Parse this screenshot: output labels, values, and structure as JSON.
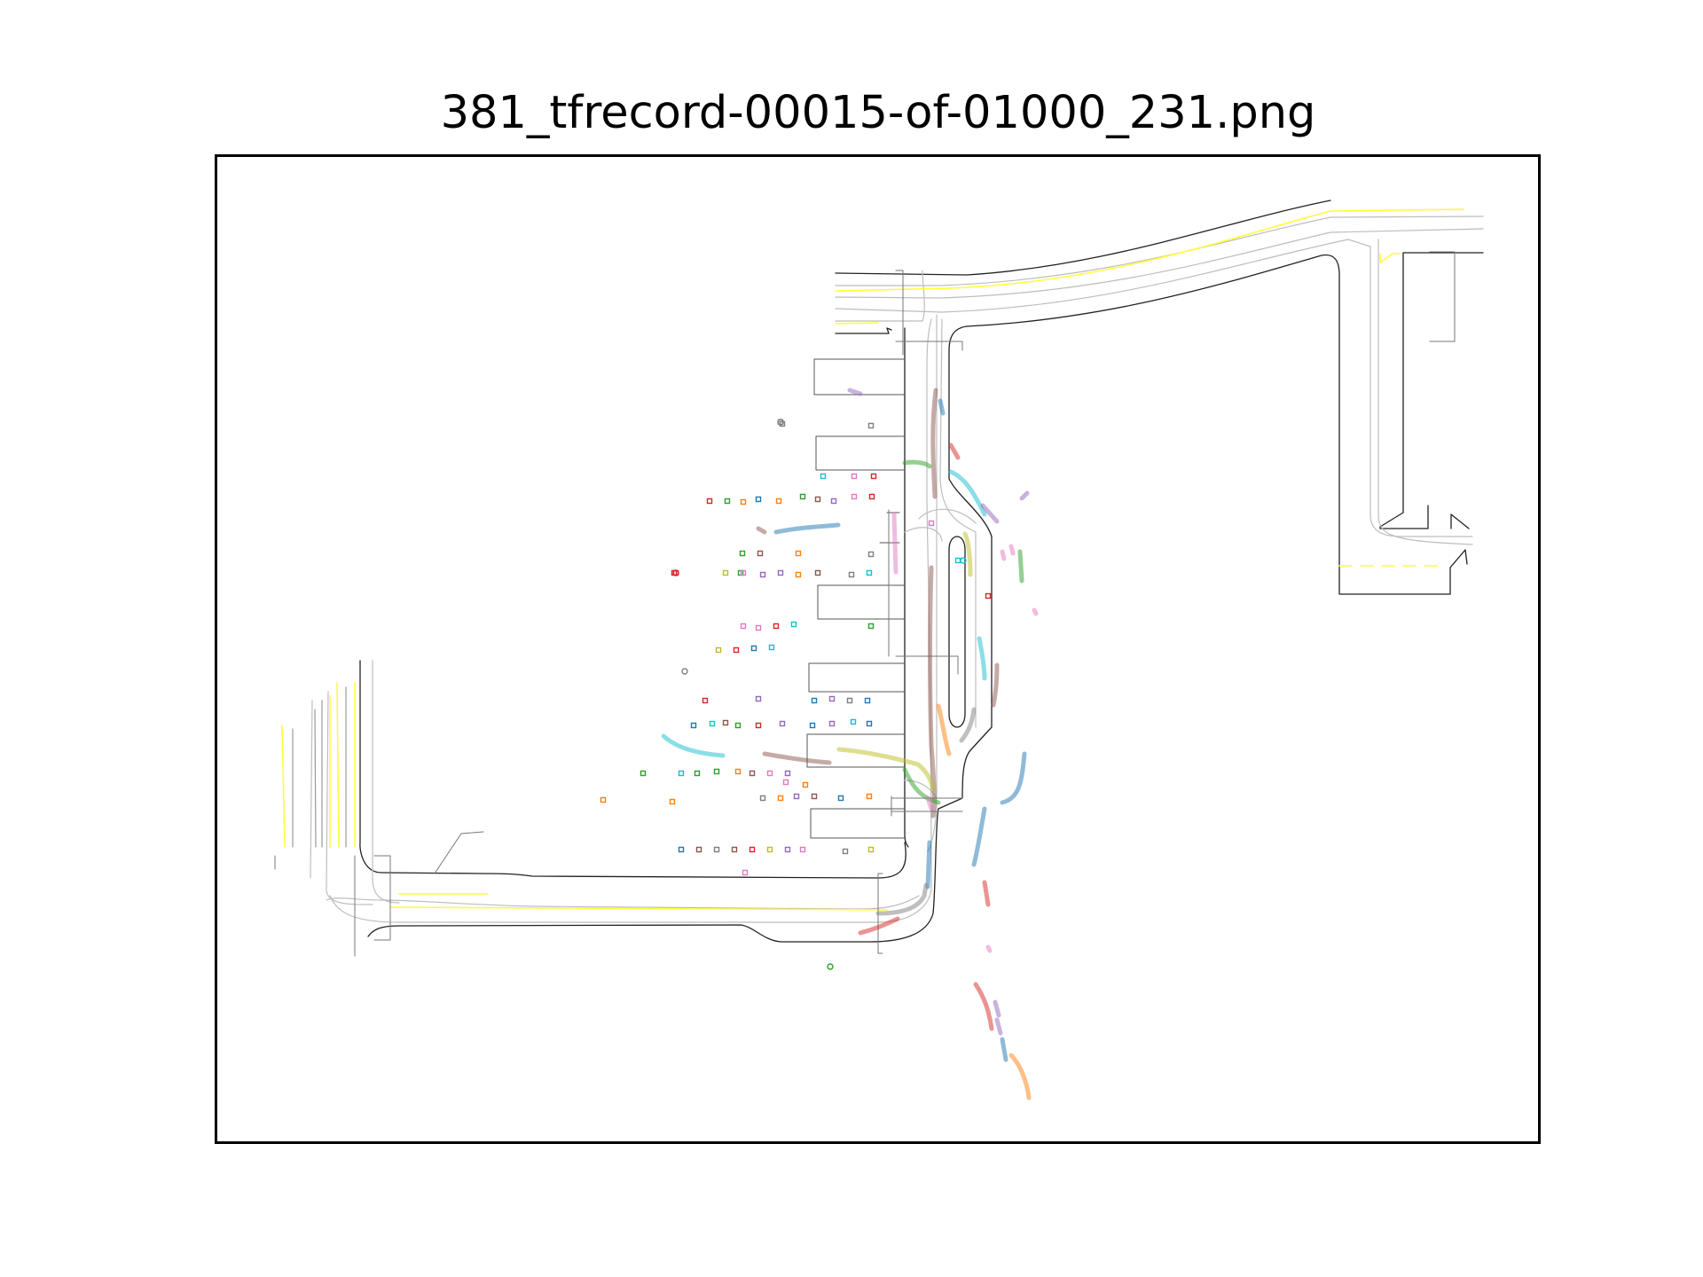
{
  "figure": {
    "title": "381_tfrecord-00015-of-01000_231.png"
  },
  "legend": {
    "road_edge": "#222222",
    "lane_center": "#bdbdbd",
    "yellow_line": "#ffff33",
    "crosswalk_stop": "#777777"
  },
  "trajectory_colors": [
    "#1f77b4",
    "#ff7f0e",
    "#2ca02c",
    "#d62728",
    "#9467bd",
    "#8c564b",
    "#e377c2",
    "#7f7f7f",
    "#bcbd22",
    "#17becf"
  ]
}
